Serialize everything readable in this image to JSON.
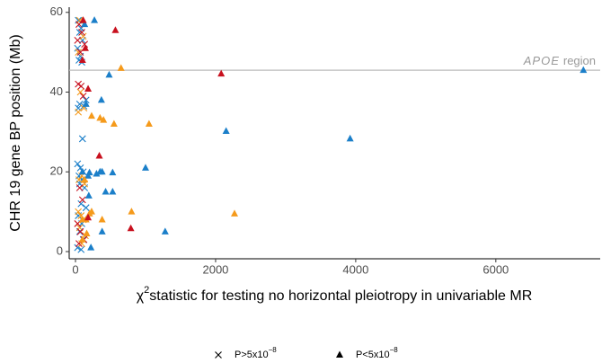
{
  "chart_data": {
    "type": "scatter",
    "xlabel": {
      "symbol": "χ",
      "sup": "2",
      "text": "statistic for testing no horizontal pleiotropy in univariable MR"
    },
    "ylabel": "CHR 19 gene BP position (Mb)",
    "xlim": [
      -90,
      7490
    ],
    "ylim": [
      -1.8,
      61.3
    ],
    "xticks": [
      0,
      2000,
      4000,
      6000
    ],
    "yticks": [
      0,
      20,
      40,
      60
    ],
    "hline": {
      "y": 45.5,
      "color": "#bbbbbb",
      "label_italic": "APOE",
      "label": "region",
      "label_color": "#999999"
    },
    "legend": [
      {
        "label": "P>5x10",
        "sup": "−8",
        "marker": "cross"
      },
      {
        "label": "P<5x10",
        "sup": "−8",
        "marker": "triangle"
      }
    ],
    "series": [
      {
        "marker": "cross",
        "color": "#1b7fc9",
        "x": [
          40,
          80,
          60,
          100,
          30,
          70,
          50,
          90,
          60,
          120,
          40,
          150,
          100,
          30,
          70,
          110,
          50,
          90,
          60,
          130,
          80,
          150,
          40,
          90,
          60,
          110,
          30,
          80
        ],
        "y": [
          58,
          56,
          55,
          53,
          51,
          49,
          48,
          47.5,
          37,
          36.5,
          36,
          38,
          28.3,
          22,
          21,
          20,
          19,
          18,
          17,
          16,
          12,
          11,
          9,
          7,
          5,
          3,
          1,
          0.5
        ]
      },
      {
        "marker": "cross",
        "color": "#f59a1b",
        "x": [
          60,
          110,
          40,
          70,
          120,
          40,
          90,
          50,
          130,
          40,
          80,
          110,
          60,
          140,
          90
        ],
        "y": [
          58,
          54,
          50,
          40,
          36,
          35,
          19,
          18,
          17,
          10,
          9,
          8,
          6,
          4,
          2
        ]
      },
      {
        "marker": "cross",
        "color": "#c8101e",
        "x": [
          50,
          90,
          30,
          130,
          70,
          40,
          80,
          110,
          60,
          100,
          30,
          70,
          120,
          50
        ],
        "y": [
          57,
          55,
          53,
          52,
          50,
          42,
          41.5,
          39,
          16,
          13,
          7,
          5,
          3,
          2
        ]
      },
      {
        "marker": "triangle",
        "color": "#1b7fc9",
        "x": [
          7250,
          3920,
          2150,
          1000,
          1280,
          530,
          530,
          380,
          350,
          200,
          300,
          430,
          190,
          380,
          220,
          270,
          130,
          480,
          370,
          150,
          180,
          100
        ],
        "y": [
          45.5,
          28.3,
          30.2,
          21,
          5,
          19.8,
          15,
          20,
          20,
          19.8,
          19.5,
          15,
          14,
          5,
          1,
          58,
          57,
          44.3,
          38,
          37,
          19,
          20
        ]
      },
      {
        "marker": "triangle",
        "color": "#f59a1b",
        "x": [
          650,
          1050,
          550,
          400,
          350,
          230,
          800,
          2270,
          380,
          230,
          200,
          130,
          100,
          150,
          160,
          100
        ],
        "y": [
          46,
          32,
          32,
          33,
          33.5,
          34,
          10,
          9.5,
          8,
          10,
          9.5,
          18,
          8,
          8,
          4.5,
          3
        ]
      },
      {
        "marker": "triangle",
        "color": "#c8101e",
        "x": [
          570,
          2080,
          180,
          340,
          790,
          180,
          110,
          140,
          100
        ],
        "y": [
          55.5,
          44.6,
          40.8,
          24,
          5.8,
          8.5,
          58,
          51,
          48
        ]
      }
    ]
  }
}
